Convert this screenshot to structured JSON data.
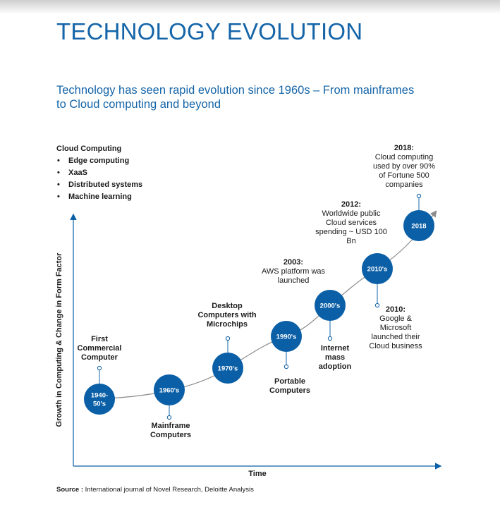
{
  "title": "TECHNOLOGY EVOLUTION",
  "subtitle": "Technology has seen rapid evolution since 1960s – From mainframes to Cloud computing and beyond",
  "cloud": {
    "heading": "Cloud Computing",
    "items": [
      "Edge computing",
      "XaaS",
      "Distributed systems",
      "Machine learning"
    ]
  },
  "axes": {
    "y_label": "Growth in Computing & Change in Form Factor",
    "x_label": "Time"
  },
  "nodes": [
    {
      "label": "1940-\n50's",
      "event_year": "",
      "event": "First\nCommercial\nComputer",
      "event_position": "above"
    },
    {
      "label": "1960's",
      "event_year": "",
      "event": "Mainframe\nComputers",
      "event_position": "below"
    },
    {
      "label": "1970's",
      "event_year": "",
      "event": "Desktop\nComputers with\nMicrochips",
      "event_position": "above"
    },
    {
      "label": "1990's",
      "event_year": "",
      "event": "Portable\nComputers",
      "event_position": "below"
    },
    {
      "label": "2000's",
      "event_year": "",
      "event": "Internet\nmass\nadoption",
      "event_position": "below"
    },
    {
      "label": "2010's",
      "event_year": "2010:",
      "event": "Google &\nMicrosoft\nlaunched their\nCloud business",
      "event_position": "below"
    },
    {
      "label": "2018",
      "event_year": "2018:",
      "event": "Cloud computing\nused by over 90%\nof Fortune 500\ncompanies",
      "event_position": "above"
    }
  ],
  "extra_events": [
    {
      "year": "2003:",
      "text": "AWS platform was\nlaunched"
    },
    {
      "year": "2012:",
      "text": "Worldwide public\nCloud services\nspending ~ USD 100\nBn"
    }
  ],
  "source": {
    "label": "Source :",
    "text": "International journal of Novel Research, Deloitte Analysis"
  },
  "colors": {
    "accent": "#1565a8",
    "node": "#0a5fa6",
    "title": "#1565a8",
    "line": "#8c8c8c"
  }
}
